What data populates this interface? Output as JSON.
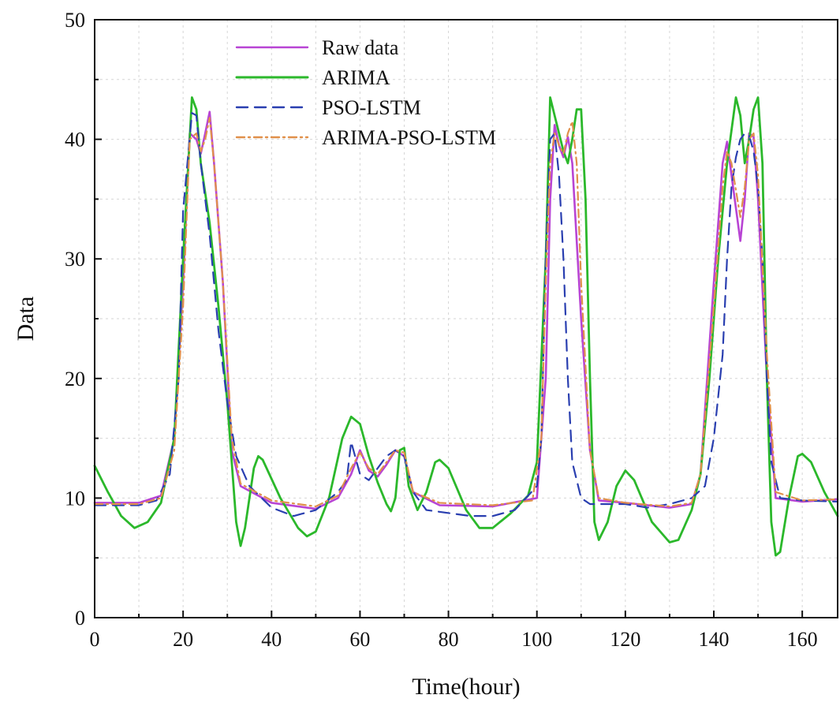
{
  "chart_data": {
    "type": "line",
    "title": "",
    "xlabel": "Time(hour)",
    "ylabel": "Data",
    "xlim": [
      0,
      168
    ],
    "ylim": [
      0,
      50
    ],
    "xticks": [
      0,
      20,
      40,
      60,
      80,
      100,
      120,
      140,
      160
    ],
    "yticks": [
      0,
      10,
      20,
      30,
      40,
      50
    ],
    "grid": true,
    "legend_position": "top-center",
    "series": [
      {
        "name": "Raw data",
        "color": "#b844d4",
        "style": "solid",
        "points": [
          [
            0,
            9.6
          ],
          [
            10,
            9.6
          ],
          [
            15,
            10.2
          ],
          [
            18,
            15
          ],
          [
            20,
            28
          ],
          [
            21.5,
            40.5
          ],
          [
            23,
            40
          ],
          [
            24,
            38.8
          ],
          [
            25,
            40.5
          ],
          [
            26,
            42.3
          ],
          [
            27,
            38
          ],
          [
            29,
            28
          ],
          [
            31,
            14
          ],
          [
            33,
            11
          ],
          [
            40,
            9.6
          ],
          [
            50,
            9.1
          ],
          [
            55,
            10
          ],
          [
            58,
            12
          ],
          [
            60,
            14
          ],
          [
            62,
            12.3
          ],
          [
            64,
            11.8
          ],
          [
            66,
            12.8
          ],
          [
            68,
            14
          ],
          [
            70,
            13.5
          ],
          [
            72,
            10.5
          ],
          [
            78,
            9.4
          ],
          [
            90,
            9.3
          ],
          [
            100,
            10
          ],
          [
            102,
            20
          ],
          [
            103,
            35
          ],
          [
            104,
            41.2
          ],
          [
            105,
            39.5
          ],
          [
            106,
            38.5
          ],
          [
            107,
            40.2
          ],
          [
            108,
            38
          ],
          [
            110,
            25
          ],
          [
            112,
            14
          ],
          [
            114,
            9.8
          ],
          [
            120,
            9.6
          ],
          [
            130,
            9.2
          ],
          [
            135,
            9.5
          ],
          [
            137,
            12
          ],
          [
            140,
            28
          ],
          [
            142,
            38
          ],
          [
            143,
            39.8
          ],
          [
            144,
            37
          ],
          [
            146,
            31.5
          ],
          [
            147,
            35
          ],
          [
            148,
            40.5
          ],
          [
            149,
            40.2
          ],
          [
            150,
            35
          ],
          [
            152,
            20
          ],
          [
            154,
            10
          ],
          [
            160,
            9.7
          ],
          [
            168,
            9.9
          ]
        ]
      },
      {
        "name": "ARIMA",
        "color": "#2bb82b",
        "style": "solid",
        "points": [
          [
            0,
            12.7
          ],
          [
            3,
            10.5
          ],
          [
            6,
            8.5
          ],
          [
            9,
            7.5
          ],
          [
            12,
            8
          ],
          [
            15,
            9.6
          ],
          [
            18,
            15
          ],
          [
            20,
            30
          ],
          [
            22,
            43.5
          ],
          [
            23,
            42.5
          ],
          [
            24,
            38
          ],
          [
            26,
            33
          ],
          [
            28,
            26
          ],
          [
            30,
            18
          ],
          [
            32,
            8
          ],
          [
            33,
            6
          ],
          [
            34,
            7.5
          ],
          [
            36,
            12.5
          ],
          [
            37,
            13.5
          ],
          [
            38,
            13.2
          ],
          [
            42,
            10
          ],
          [
            46,
            7.5
          ],
          [
            48,
            6.8
          ],
          [
            50,
            7.2
          ],
          [
            53,
            10
          ],
          [
            56,
            15
          ],
          [
            58,
            16.8
          ],
          [
            60,
            16.2
          ],
          [
            62,
            13.5
          ],
          [
            64,
            11.3
          ],
          [
            66,
            9.5
          ],
          [
            67,
            8.9
          ],
          [
            68,
            10
          ],
          [
            69,
            14
          ],
          [
            70,
            14.2
          ],
          [
            71,
            11
          ],
          [
            73,
            9
          ],
          [
            75,
            10.5
          ],
          [
            77,
            13
          ],
          [
            78,
            13.2
          ],
          [
            80,
            12.5
          ],
          [
            84,
            9
          ],
          [
            87,
            7.5
          ],
          [
            90,
            7.5
          ],
          [
            94,
            8.7
          ],
          [
            98,
            10.2
          ],
          [
            100,
            13
          ],
          [
            102,
            30
          ],
          [
            103,
            43.5
          ],
          [
            104,
            42
          ],
          [
            106,
            39
          ],
          [
            107,
            38
          ],
          [
            108,
            40
          ],
          [
            109,
            42.5
          ],
          [
            110,
            42.5
          ],
          [
            111,
            35
          ],
          [
            112,
            20
          ],
          [
            113,
            8
          ],
          [
            114,
            6.5
          ],
          [
            116,
            8
          ],
          [
            118,
            11
          ],
          [
            120,
            12.3
          ],
          [
            122,
            11.5
          ],
          [
            126,
            8
          ],
          [
            130,
            6.3
          ],
          [
            132,
            6.5
          ],
          [
            135,
            9
          ],
          [
            137,
            12
          ],
          [
            139,
            20
          ],
          [
            141,
            30
          ],
          [
            143,
            38
          ],
          [
            145,
            43.5
          ],
          [
            146,
            42
          ],
          [
            147,
            38
          ],
          [
            148,
            40
          ],
          [
            149,
            42.5
          ],
          [
            150,
            43.5
          ],
          [
            151,
            38
          ],
          [
            152,
            20
          ],
          [
            153,
            8
          ],
          [
            154,
            5.2
          ],
          [
            155,
            5.5
          ],
          [
            157,
            10
          ],
          [
            159,
            13.5
          ],
          [
            160,
            13.7
          ],
          [
            162,
            13
          ],
          [
            165,
            10.5
          ],
          [
            168,
            8.5
          ]
        ]
      },
      {
        "name": "PSO-LSTM",
        "color": "#2a3fb0",
        "style": "dashed",
        "points": [
          [
            0,
            9.4
          ],
          [
            10,
            9.4
          ],
          [
            14,
            9.8
          ],
          [
            17,
            12
          ],
          [
            19,
            20
          ],
          [
            20,
            34
          ],
          [
            22,
            42.2
          ],
          [
            23,
            42
          ],
          [
            24,
            38
          ],
          [
            26,
            32
          ],
          [
            28,
            24
          ],
          [
            30,
            18
          ],
          [
            32,
            13.5
          ],
          [
            35,
            11
          ],
          [
            40,
            9.2
          ],
          [
            45,
            8.5
          ],
          [
            50,
            9
          ],
          [
            55,
            10.5
          ],
          [
            57,
            11.5
          ],
          [
            58,
            14.7
          ],
          [
            60,
            12
          ],
          [
            62,
            11.5
          ],
          [
            64,
            12.5
          ],
          [
            66,
            13.5
          ],
          [
            68,
            14
          ],
          [
            70,
            13.5
          ],
          [
            72,
            10.5
          ],
          [
            75,
            9
          ],
          [
            85,
            8.5
          ],
          [
            90,
            8.5
          ],
          [
            95,
            9
          ],
          [
            100,
            11
          ],
          [
            101,
            15
          ],
          [
            102,
            30
          ],
          [
            103,
            40
          ],
          [
            104,
            40.5
          ],
          [
            105,
            37
          ],
          [
            106,
            30
          ],
          [
            107,
            20
          ],
          [
            108,
            13
          ],
          [
            110,
            10
          ],
          [
            112,
            9.5
          ],
          [
            120,
            9.5
          ],
          [
            125,
            9.2
          ],
          [
            130,
            9.5
          ],
          [
            135,
            10
          ],
          [
            138,
            11
          ],
          [
            140,
            15
          ],
          [
            142,
            22
          ],
          [
            143,
            30
          ],
          [
            144,
            36
          ],
          [
            145,
            38.5
          ],
          [
            146,
            40
          ],
          [
            147,
            40.5
          ],
          [
            148,
            40.3
          ],
          [
            149,
            39
          ],
          [
            150,
            36
          ],
          [
            151,
            30
          ],
          [
            152,
            20
          ],
          [
            153,
            13
          ],
          [
            155,
            10
          ],
          [
            160,
            9.8
          ],
          [
            168,
            9.7
          ]
        ]
      },
      {
        "name": "ARIMA-PSO-LSTM",
        "color": "#e0904a",
        "style": "dashdot",
        "points": [
          [
            0,
            9.5
          ],
          [
            10,
            9.5
          ],
          [
            15,
            10
          ],
          [
            18,
            14
          ],
          [
            20,
            26
          ],
          [
            21.5,
            40
          ],
          [
            23,
            40.5
          ],
          [
            24,
            39
          ],
          [
            25,
            40
          ],
          [
            26,
            41.8
          ],
          [
            27,
            38
          ],
          [
            29,
            28
          ],
          [
            31,
            15
          ],
          [
            33,
            11.2
          ],
          [
            40,
            9.8
          ],
          [
            50,
            9.3
          ],
          [
            55,
            10.2
          ],
          [
            58,
            12.5
          ],
          [
            60,
            13.8
          ],
          [
            62,
            12.5
          ],
          [
            64,
            12
          ],
          [
            66,
            13
          ],
          [
            68,
            14
          ],
          [
            70,
            13.8
          ],
          [
            72,
            10.5
          ],
          [
            78,
            9.6
          ],
          [
            90,
            9.4
          ],
          [
            99,
            9.8
          ],
          [
            101,
            15
          ],
          [
            102,
            28
          ],
          [
            103,
            38
          ],
          [
            104,
            40.5
          ],
          [
            105,
            39.5
          ],
          [
            106,
            38.8
          ],
          [
            107,
            40.5
          ],
          [
            108,
            41.5
          ],
          [
            109,
            38
          ],
          [
            110,
            28
          ],
          [
            112,
            14
          ],
          [
            114,
            10
          ],
          [
            120,
            9.6
          ],
          [
            130,
            9.3
          ],
          [
            135,
            9.6
          ],
          [
            137,
            12
          ],
          [
            140,
            26
          ],
          [
            142,
            36
          ],
          [
            143,
            39
          ],
          [
            144,
            38
          ],
          [
            146,
            33.5
          ],
          [
            147,
            36
          ],
          [
            148,
            40
          ],
          [
            149,
            40.5
          ],
          [
            150,
            37
          ],
          [
            152,
            22
          ],
          [
            154,
            10.5
          ],
          [
            160,
            9.8
          ],
          [
            168,
            9.9
          ]
        ]
      }
    ]
  }
}
